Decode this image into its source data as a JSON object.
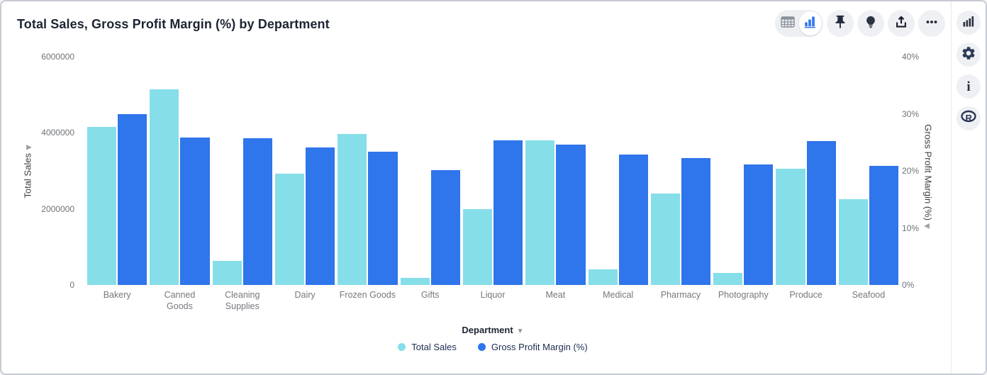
{
  "header": {
    "title": "Total Sales, Gross Profit Margin (%) by Department"
  },
  "toolbar": {
    "view_toggle": {
      "options": [
        "table-view-icon",
        "chart-view-icon"
      ],
      "selected": "chart-view-icon"
    },
    "buttons": [
      "pin-icon",
      "insights-bulb-icon",
      "share-icon",
      "more-options-icon"
    ]
  },
  "sidebar": {
    "buttons": [
      "chart-config-icon",
      "settings-gear-icon",
      "info-icon",
      "r-analysis-icon"
    ]
  },
  "colors": {
    "total_sales": "#86dee8",
    "gross_profit_margin": "#2f75eb",
    "title_text": "#1d2433",
    "tick_text": "#6f7377"
  },
  "chart_data": {
    "type": "bar",
    "title": "Total Sales, Gross Profit Margin (%) by Department",
    "grid": false,
    "legend_position": "bottom-center",
    "categories": [
      "Bakery",
      "Canned Goods",
      "Cleaning Supplies",
      "Dairy",
      "Frozen Goods",
      "Gifts",
      "Liquor",
      "Meat",
      "Medical",
      "Pharmacy",
      "Photography",
      "Produce",
      "Seafood"
    ],
    "series": [
      {
        "name": "Total Sales",
        "axis": "left",
        "color": "#86dee8",
        "values": [
          4150000,
          5150000,
          630000,
          2920000,
          3970000,
          190000,
          2000000,
          3800000,
          420000,
          2410000,
          310000,
          3060000,
          2260000
        ]
      },
      {
        "name": "Gross Profit Margin (%)",
        "axis": "right",
        "color": "#2f75eb",
        "values": [
          30.0,
          25.8,
          25.7,
          24.1,
          23.4,
          20.1,
          25.4,
          24.6,
          22.9,
          22.2,
          21.1,
          25.2,
          20.9
        ]
      }
    ],
    "xlabel": "Department",
    "left_axis": {
      "title": "Total Sales",
      "max": 6000000,
      "min": 0,
      "ticks": [
        {
          "label": "6000000",
          "value": 6000000
        },
        {
          "label": "4000000",
          "value": 4000000
        },
        {
          "label": "2000000",
          "value": 2000000
        },
        {
          "label": "0",
          "value": 0
        }
      ]
    },
    "right_axis": {
      "title": "Gross Profit Margin (%)",
      "max": 40,
      "min": 0,
      "ticks": [
        {
          "label": "40%",
          "value": 40
        },
        {
          "label": "30%",
          "value": 30
        },
        {
          "label": "20%",
          "value": 20
        },
        {
          "label": "10%",
          "value": 10
        },
        {
          "label": "0%",
          "value": 0
        }
      ]
    }
  }
}
